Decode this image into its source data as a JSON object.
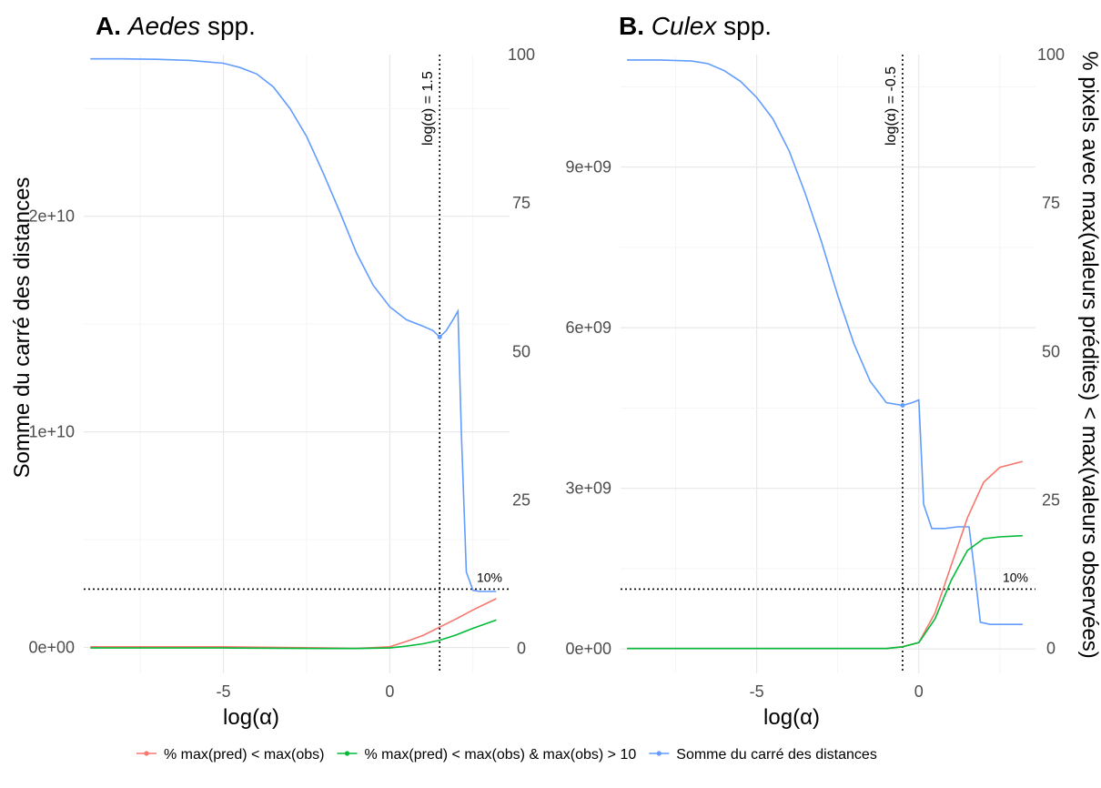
{
  "chart_data": [
    {
      "type": "line",
      "title_prefix": "A.",
      "title_italic": "Aedes",
      "title_suffix": " spp.",
      "xlabel": "log(α)",
      "ylabel": "Somme du carré des distances",
      "y2label": "",
      "xlim": [
        -9.2,
        3.6
      ],
      "ylim": [
        -1200000000.0,
        27500000000.0
      ],
      "y2lim": [
        -4.18,
        100
      ],
      "xticks": [
        -5,
        0
      ],
      "xtick_labels": [
        "-5",
        "0"
      ],
      "yticks": [
        0,
        10000000000.0,
        20000000000.0
      ],
      "ytick_labels": [
        "0e+00",
        "1e+10",
        "2e+10"
      ],
      "y2ticks": [
        0,
        25,
        50,
        75,
        100
      ],
      "y2tick_labels": [
        "0",
        "25",
        "50",
        "75",
        "100"
      ],
      "vline": {
        "x": 1.5,
        "label": "log(α) = 1.5"
      },
      "hline": {
        "y2": 10,
        "label": "10%"
      },
      "series": [
        {
          "name": "Somme du carré des distances",
          "axis": "left",
          "color": "#619cff",
          "x": [
            -9,
            -8,
            -7,
            -6,
            -5,
            -4.5,
            -4,
            -3.5,
            -3,
            -2.5,
            -2,
            -1.5,
            -1,
            -0.5,
            0,
            0.5,
            1,
            1.3,
            1.5,
            1.7,
            1.9,
            2.05,
            2.15,
            2.3,
            2.5,
            2.7,
            3.2
          ],
          "y": [
            27300000000.0,
            27300000000.0,
            27280000000.0,
            27230000000.0,
            27100000000.0,
            26900000000.0,
            26600000000.0,
            26000000000.0,
            25000000000.0,
            23700000000.0,
            22000000000.0,
            20200000000.0,
            18300000000.0,
            16800000000.0,
            15800000000.0,
            15200000000.0,
            14900000000.0,
            14700000000.0,
            14400000000.0,
            14700000000.0,
            15200000000.0,
            15600000000.0,
            10000000000.0,
            3500000000.0,
            2650000000.0,
            2600000000.0,
            2600000000.0
          ]
        },
        {
          "name": "% max(pred) < max(obs)",
          "axis": "right",
          "color": "#f8766d",
          "x": [
            -9,
            -5,
            -2,
            -1,
            0,
            0.5,
            1,
            1.5,
            2,
            2.5,
            3.2
          ],
          "y": [
            0.3,
            0.3,
            0.1,
            0,
            0.3,
            1.2,
            2.2,
            3.6,
            5.0,
            6.5,
            8.4
          ]
        },
        {
          "name": "% max(pred) < max(obs) & max(obs) > 10",
          "axis": "right",
          "color": "#00ba38",
          "x": [
            -9,
            -5,
            -2,
            -1,
            0,
            0.5,
            1,
            1.5,
            2,
            2.5,
            3.2
          ],
          "y": [
            0.1,
            0.1,
            0,
            0,
            0.1,
            0.4,
            0.8,
            1.4,
            2.3,
            3.4,
            4.8
          ]
        }
      ]
    },
    {
      "type": "line",
      "title_prefix": "B.",
      "title_italic": "Culex",
      "title_suffix": " spp.",
      "xlabel": "log(α)",
      "ylabel": "",
      "y2label": "% pixels avec max(valeurs prédites) < max(valeurs observées)",
      "xlim": [
        -9.2,
        3.6
      ],
      "ylim": [
        -455000000.0,
        11100000000.0
      ],
      "y2lim": [
        -4.18,
        100
      ],
      "xticks": [
        -5,
        0
      ],
      "xtick_labels": [
        "-5",
        "0"
      ],
      "yticks": [
        0,
        3000000000.0,
        6000000000.0,
        9000000000.0
      ],
      "ytick_labels": [
        "0e+00",
        "3e+09",
        "6e+09",
        "9e+09"
      ],
      "y2ticks": [
        0,
        25,
        50,
        75,
        100
      ],
      "y2tick_labels": [
        "0",
        "25",
        "50",
        "75",
        "100"
      ],
      "vline": {
        "x": -0.5,
        "label": "log(α) = -0.5"
      },
      "hline": {
        "y2": 10,
        "label": "10%"
      },
      "series": [
        {
          "name": "Somme du carré des distances",
          "axis": "left",
          "color": "#619cff",
          "x": [
            -9,
            -8,
            -7,
            -6.5,
            -6,
            -5.5,
            -5,
            -4.5,
            -4,
            -3.5,
            -3,
            -2.5,
            -2,
            -1.5,
            -1,
            -0.5,
            -0.2,
            0,
            0.15,
            0.4,
            0.8,
            1.2,
            1.55,
            1.75,
            1.9,
            2.2,
            3.2
          ],
          "y": [
            11000000000.0,
            11000000000.0,
            10980000000.0,
            10930000000.0,
            10800000000.0,
            10600000000.0,
            10300000000.0,
            9900000000.0,
            9300000000.0,
            8500000000.0,
            7600000000.0,
            6600000000.0,
            5700000000.0,
            5000000000.0,
            4600000000.0,
            4550000000.0,
            4600000000.0,
            4650000000.0,
            2700000000.0,
            2250000000.0,
            2250000000.0,
            2280000000.0,
            2280000000.0,
            1300000000.0,
            500000000.0,
            460000000.0,
            460000000.0
          ]
        },
        {
          "name": "% max(pred) < max(obs)",
          "axis": "right",
          "color": "#f8766d",
          "x": [
            -9,
            -5,
            -1,
            -0.5,
            0,
            0.5,
            1,
            1.5,
            2,
            2.5,
            3.2
          ],
          "y": [
            0,
            0,
            0,
            0.3,
            1,
            6,
            14,
            22,
            28,
            30.5,
            31.5
          ]
        },
        {
          "name": "% max(pred) < max(obs) & max(obs) > 10",
          "axis": "right",
          "color": "#00ba38",
          "x": [
            -9,
            -5,
            -1,
            -0.5,
            0,
            0.5,
            1,
            1.5,
            2,
            2.5,
            3.2
          ],
          "y": [
            0,
            0,
            0,
            0.3,
            1,
            5,
            11.5,
            16.5,
            18.5,
            18.8,
            19
          ]
        }
      ]
    }
  ],
  "legend": {
    "placement": "bottom",
    "items": [
      {
        "label": "% max(pred) < max(obs)",
        "color": "#f8766d"
      },
      {
        "label": "% max(pred) < max(obs) & max(obs) > 10",
        "color": "#00ba38"
      },
      {
        "label": "Somme du carré des distances",
        "color": "#619cff"
      }
    ]
  }
}
